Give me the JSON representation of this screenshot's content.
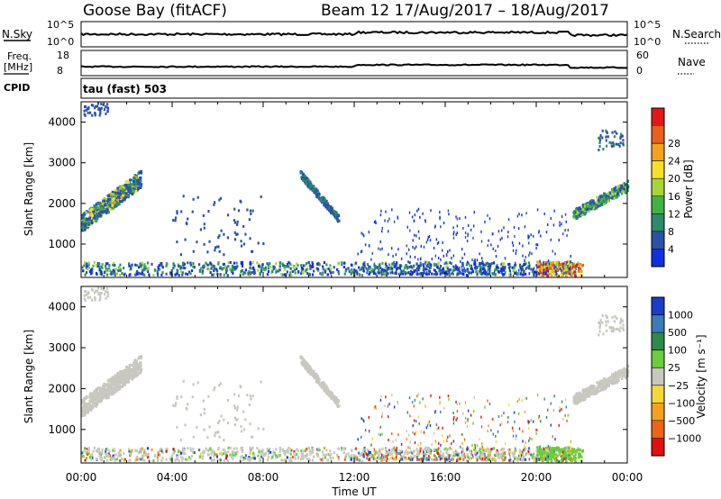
{
  "header": {
    "station": "Goose Bay (fitACF)",
    "beam_info": "Beam 12 17/Aug/2017 – 18/Aug/2017"
  },
  "strip_labels": {
    "nsky": "N.Sky",
    "nsky_ticks": [
      "10^5",
      "10^0"
    ],
    "nsearch": "N.Search",
    "nsearch_ticks": [
      "10^5",
      "10^0"
    ],
    "freq_line1": "Freq.",
    "freq_line2": "[MHz]",
    "freq_ticks": [
      "18",
      "8"
    ],
    "nave": "Nave",
    "nave_ticks": [
      "60",
      "0"
    ],
    "cpid": "CPID",
    "mode": "tau (fast) 503"
  },
  "chart_data": [
    {
      "type": "heatmap",
      "title": "",
      "parameter": "Power",
      "xlabel": "",
      "ylabel": "Slant Range [km]",
      "colorbar_label": "Power [dB]",
      "xlim_hours": [
        0,
        24
      ],
      "ylim_km": [
        180,
        4500
      ],
      "yticks": [
        1000,
        2000,
        3000,
        4000
      ],
      "colorbar_ticks": [
        "4",
        "8",
        "12",
        "16",
        "20",
        "24",
        "28"
      ],
      "colorbar_colors": [
        "#1030e0",
        "#2a52a8",
        "#2e8a6e",
        "#42b246",
        "#a8d43a",
        "#f5e02a",
        "#f2a41e",
        "#e8601e",
        "#e01818"
      ],
      "features": [
        {
          "name": "near-range band",
          "hours": [
            0,
            22
          ],
          "range_km": [
            200,
            600
          ]
        },
        {
          "name": "morning echo",
          "hours": [
            0,
            2.5
          ],
          "range_km": [
            1400,
            2800
          ]
        },
        {
          "name": "pre-noon streak",
          "hours": [
            9.5,
            11.2
          ],
          "range_km": [
            1500,
            2700
          ]
        },
        {
          "name": "evening echo",
          "hours": [
            21.5,
            24
          ],
          "range_km": [
            1700,
            2600
          ]
        }
      ]
    },
    {
      "type": "heatmap",
      "title": "",
      "parameter": "Velocity",
      "xlabel": "Time UT",
      "ylabel": "Slant Range [km]",
      "colorbar_label": "Velocity [m s⁻¹]",
      "xlim_hours": [
        0,
        24
      ],
      "ylim_km": [
        180,
        4500
      ],
      "xticks": [
        "00:00",
        "04:00",
        "08:00",
        "12:00",
        "16:00",
        "20:00",
        "00:00"
      ],
      "yticks": [
        1000,
        2000,
        3000,
        4000
      ],
      "colorbar_ticks": [
        "1000",
        "500",
        "100",
        "25",
        "−25",
        "−100",
        "−500",
        "−1000"
      ],
      "colorbar_colors": [
        "#1a3cc8",
        "#3d7ab8",
        "#2e8a48",
        "#6ccd3a",
        "#c8c8c0",
        "#f5d838",
        "#f5a020",
        "#ec6418",
        "#e01010"
      ]
    }
  ]
}
